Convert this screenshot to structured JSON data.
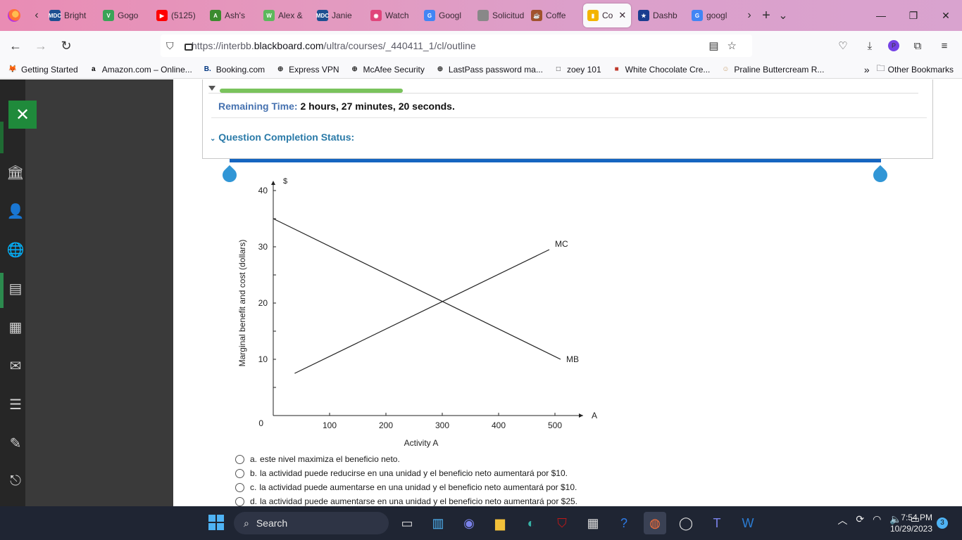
{
  "browser": {
    "tabs": [
      {
        "label": "Bright",
        "icon": "MDC",
        "color": "#1d4f91"
      },
      {
        "label": "Gogo",
        "icon": "V",
        "color": "#3aa357"
      },
      {
        "label": "(5125)",
        "icon": "▶",
        "color": "#ff0000"
      },
      {
        "label": "Ash's",
        "icon": "A",
        "color": "#3b8b2f"
      },
      {
        "label": "Alex &",
        "icon": "W",
        "color": "#5cb85c"
      },
      {
        "label": "Janie",
        "icon": "MDC",
        "color": "#1d4f91"
      },
      {
        "label": "Watch",
        "icon": "◉",
        "color": "#e0457b"
      },
      {
        "label": "Googl",
        "icon": "G",
        "color": "#4285f4"
      },
      {
        "label": "Solicitud S",
        "icon": "",
        "color": "#888888"
      },
      {
        "label": "Coffe",
        "icon": "☕",
        "color": "#a0522d"
      },
      {
        "label": "Co",
        "icon": "▮",
        "color": "#f3b400"
      },
      {
        "label": "Dashb",
        "icon": "★",
        "color": "#1a3c8f"
      },
      {
        "label": "googl",
        "icon": "G",
        "color": "#4285f4"
      }
    ],
    "url_prefix": "https://interbb.",
    "url_domain": "blackboard.com",
    "url_path": "/ultra/courses/_440411_1/cl/outline",
    "bookmarks": [
      {
        "label": "Getting Started",
        "icon": "🦊",
        "color": "#ff7139"
      },
      {
        "label": "Amazon.com – Online...",
        "icon": "a",
        "color": "#000000"
      },
      {
        "label": "Booking.com",
        "icon": "B.",
        "color": "#003580"
      },
      {
        "label": "Express VPN",
        "icon": "⊕",
        "color": "#333333"
      },
      {
        "label": "McAfee Security",
        "icon": "⊕",
        "color": "#333333"
      },
      {
        "label": "LastPass password ma...",
        "icon": "⊕",
        "color": "#333333"
      },
      {
        "label": "zoey 101",
        "icon": "□",
        "color": "#333333"
      },
      {
        "label": "White Chocolate Cre...",
        "icon": "■",
        "color": "#c0392b"
      },
      {
        "label": "Praline Buttercream R...",
        "icon": "☺",
        "color": "#c8a070"
      }
    ],
    "other_bookmarks": "Other Bookmarks"
  },
  "test": {
    "remaining_label": "Remaining Time:",
    "remaining_value": "2 hours, 27 minutes, 20 seconds.",
    "completion_label": "Question Completion Status:",
    "progress_fraction": 0.26
  },
  "chart_data": {
    "type": "line",
    "ylabel": "Marginal benefit and cost (dollars)",
    "y_unit": "$",
    "xlabel": "Activity A",
    "x_axis_end_label": "A",
    "xlim": [
      0,
      550
    ],
    "ylim": [
      0,
      40
    ],
    "x_ticks": [
      100,
      200,
      300,
      400,
      500
    ],
    "y_ticks": [
      10,
      20,
      30,
      40
    ],
    "origin_label": "0",
    "series": [
      {
        "name": "MC",
        "x": [
          38,
          490
        ],
        "y": [
          7.5,
          29.5
        ]
      },
      {
        "name": "MB",
        "x": [
          0,
          510
        ],
        "y": [
          35,
          10
        ]
      }
    ]
  },
  "answers": [
    {
      "letter": "a.",
      "text": "este nivel maximiza el beneficio neto."
    },
    {
      "letter": "b.",
      "text": "la actividad puede reducirse en una unidad y el beneficio neto aumentará por $10."
    },
    {
      "letter": "c.",
      "text": "la actividad puede aumentarse en una unidad y el beneficio neto aumentará por $10."
    },
    {
      "letter": "d.",
      "text": "la actividad puede aumentarse en una unidad y el beneficio neto aumentará por $25."
    }
  ],
  "taskbar": {
    "search_label": "Search",
    "time": "7:54 PM",
    "date": "10/29/2023",
    "notification_count": "3"
  }
}
